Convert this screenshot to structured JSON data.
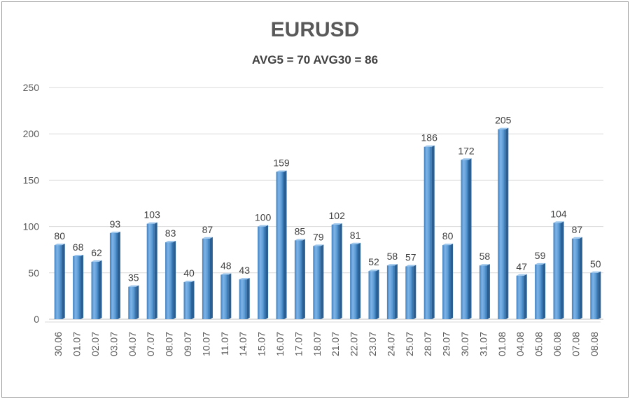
{
  "chart_data": {
    "type": "bar",
    "title": "EURUSD",
    "subtitle": "AVG5 = 70 AVG30 = 86",
    "xlabel": "",
    "ylabel": "",
    "ylim": [
      0,
      250
    ],
    "yticks": [
      0,
      50,
      100,
      150,
      200,
      250
    ],
    "grid": true,
    "legend": "none",
    "bar_color": "#5b9bd5",
    "categories": [
      "30.06",
      "01.07",
      "02.07",
      "03.07",
      "04.07",
      "07.07",
      "08.07",
      "09.07",
      "10.07",
      "11.07",
      "14.07",
      "15.07",
      "16.07",
      "17.07",
      "18.07",
      "21.07",
      "22.07",
      "23.07",
      "24.07",
      "25.07",
      "28.07",
      "29.07",
      "30.07",
      "31.07",
      "01.08",
      "04.08",
      "05.08",
      "06.08",
      "07.08",
      "08.08"
    ],
    "values": [
      80,
      68,
      62,
      93,
      35,
      103,
      83,
      40,
      87,
      48,
      43,
      100,
      159,
      85,
      79,
      102,
      81,
      52,
      58,
      57,
      186,
      80,
      172,
      58,
      205,
      47,
      59,
      104,
      87,
      50
    ]
  }
}
